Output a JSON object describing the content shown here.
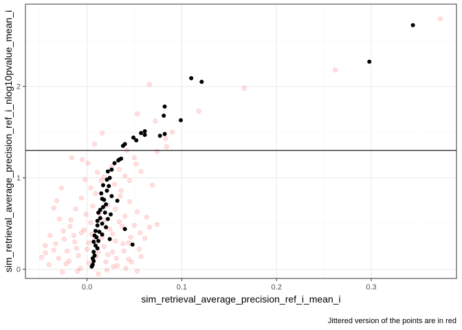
{
  "chart_data": {
    "type": "scatter",
    "title": "",
    "xlabel": "sim_retrieval_average_precision_ref_i_mean_i",
    "ylabel": "sim_retrieval_average_precision_ref_i_nlog10pvalue_mean_i",
    "caption": "Jittered version of the points are in red",
    "xlim": [
      -0.065,
      0.39
    ],
    "ylim": [
      -0.1,
      2.9
    ],
    "x_ticks": [
      0.0,
      0.1,
      0.2,
      0.3
    ],
    "x_tick_labels": [
      "0.0",
      "0.1",
      "0.2",
      "0.3"
    ],
    "y_ticks": [
      0,
      1,
      2
    ],
    "y_tick_labels": [
      "0",
      "1",
      "2"
    ],
    "grid": true,
    "hline": 1.3,
    "colors": {
      "points": "#000000",
      "jittered": "#ff0000",
      "hline": "#000000",
      "panel_border": "#333333",
      "grid_major": "#ebebeb",
      "grid_minor": "#f5f5f5"
    },
    "series": [
      {
        "name": "points",
        "points": [
          [
            0.344,
            2.67
          ],
          [
            0.298,
            2.27
          ],
          [
            0.11,
            2.09
          ],
          [
            0.121,
            2.05
          ],
          [
            0.099,
            1.63
          ],
          [
            0.082,
            1.78
          ],
          [
            0.082,
            1.48
          ],
          [
            0.081,
            1.68
          ],
          [
            0.077,
            1.46
          ],
          [
            0.061,
            1.51
          ],
          [
            0.061,
            1.47
          ],
          [
            0.057,
            1.49
          ],
          [
            0.052,
            1.41
          ],
          [
            0.049,
            1.44
          ],
          [
            0.04,
            1.37
          ],
          [
            0.038,
            1.35
          ],
          [
            0.036,
            1.21
          ],
          [
            0.034,
            1.2
          ],
          [
            0.033,
            1.19
          ],
          [
            0.029,
            1.16
          ],
          [
            0.026,
            1.09
          ],
          [
            0.024,
            1.0
          ],
          [
            0.022,
            1.07
          ],
          [
            0.021,
            0.98
          ],
          [
            0.023,
            0.91
          ],
          [
            0.021,
            0.86
          ],
          [
            0.017,
            0.92
          ],
          [
            0.015,
            0.83
          ],
          [
            0.016,
            0.77
          ],
          [
            0.018,
            0.76
          ],
          [
            0.026,
            0.8
          ],
          [
            0.032,
            0.75
          ],
          [
            0.017,
            0.68
          ],
          [
            0.014,
            0.65
          ],
          [
            0.012,
            0.62
          ],
          [
            0.019,
            0.62
          ],
          [
            0.025,
            0.6
          ],
          [
            0.022,
            0.55
          ],
          [
            0.014,
            0.56
          ],
          [
            0.011,
            0.53
          ],
          [
            0.011,
            0.48
          ],
          [
            0.016,
            0.5
          ],
          [
            0.02,
            0.46
          ],
          [
            0.009,
            0.42
          ],
          [
            0.013,
            0.41
          ],
          [
            0.016,
            0.38
          ],
          [
            0.008,
            0.37
          ],
          [
            0.01,
            0.35
          ],
          [
            0.012,
            0.31
          ],
          [
            0.007,
            0.3
          ],
          [
            0.009,
            0.26
          ],
          [
            0.011,
            0.23
          ],
          [
            0.007,
            0.19
          ],
          [
            0.008,
            0.15
          ],
          [
            0.006,
            0.12
          ],
          [
            0.007,
            0.09
          ],
          [
            0.006,
            0.05
          ],
          [
            0.005,
            0.03
          ],
          [
            0.04,
            0.44
          ],
          [
            0.048,
            0.27
          ],
          [
            0.024,
            0.33
          ],
          [
            0.02,
            0.71
          ]
        ]
      },
      {
        "name": "jittered",
        "points": [
          [
            0.373,
            2.74
          ],
          [
            0.262,
            2.18
          ],
          [
            0.166,
            1.98
          ],
          [
            0.066,
            2.02
          ],
          [
            0.118,
            1.73
          ],
          [
            0.053,
            1.7
          ],
          [
            0.072,
            1.62
          ],
          [
            0.09,
            1.5
          ],
          [
            0.083,
            1.43
          ],
          [
            0.016,
            1.49
          ],
          [
            0.084,
            1.34
          ],
          [
            0.008,
            1.37
          ],
          [
            0.074,
            1.29
          ],
          [
            0.042,
            1.3
          ],
          [
            0.052,
            1.15
          ],
          [
            -0.016,
            1.22
          ],
          [
            0.069,
            0.92
          ],
          [
            0.045,
            0.97
          ],
          [
            0.074,
            0.49
          ],
          [
            -0.005,
            1.2
          ],
          [
            0.001,
            1.16
          ],
          [
            0.034,
            1.09
          ],
          [
            0.04,
            1.02
          ],
          [
            0.011,
            1.06
          ],
          [
            -0.027,
            0.89
          ],
          [
            -0.032,
            0.75
          ],
          [
            -0.035,
            0.67
          ],
          [
            -0.029,
            0.55
          ],
          [
            -0.025,
            0.42
          ],
          [
            -0.039,
            0.37
          ],
          [
            -0.044,
            0.26
          ],
          [
            -0.048,
            0.13
          ],
          [
            -0.04,
            0.05
          ],
          [
            -0.026,
            -0.03
          ],
          [
            -0.01,
            -0.02
          ],
          [
            0.012,
            -0.05
          ],
          [
            0.021,
            -0.01
          ],
          [
            0.032,
            0.04
          ],
          [
            0.044,
            0.11
          ],
          [
            0.055,
            0.22
          ],
          [
            0.061,
            0.34
          ],
          [
            0.066,
            0.46
          ],
          [
            0.053,
            0.63
          ],
          [
            0.045,
            0.74
          ],
          [
            0.036,
            0.86
          ],
          [
            0.029,
            0.93
          ],
          [
            0.015,
            0.97
          ],
          [
            0.004,
            0.89
          ],
          [
            -0.006,
            0.78
          ],
          [
            -0.012,
            0.66
          ],
          [
            -0.017,
            0.54
          ],
          [
            -0.003,
            0.43
          ],
          [
            0.008,
            0.32
          ],
          [
            0.018,
            0.25
          ],
          [
            0.027,
            0.19
          ],
          [
            0.038,
            0.28
          ],
          [
            0.046,
            0.35
          ],
          [
            0.05,
            0.48
          ],
          [
            0.04,
            0.58
          ],
          [
            0.03,
            0.66
          ],
          [
            0.022,
            0.7
          ],
          [
            0.013,
            0.61
          ],
          [
            0.004,
            0.51
          ],
          [
            -0.006,
            0.4
          ],
          [
            -0.013,
            0.3
          ],
          [
            -0.021,
            0.2
          ],
          [
            -0.03,
            0.12
          ],
          [
            -0.019,
            0.09
          ],
          [
            -0.009,
            0.15
          ],
          [
            0.0,
            0.22
          ],
          [
            0.01,
            0.14
          ],
          [
            0.02,
            0.08
          ],
          [
            0.031,
            0.12
          ],
          [
            0.039,
            0.2
          ],
          [
            0.047,
            0.08
          ],
          [
            0.057,
            0.14
          ],
          [
            0.024,
            0.44
          ],
          [
            0.034,
            0.52
          ],
          [
            0.006,
            0.69
          ],
          [
            -0.001,
            0.6
          ],
          [
            -0.018,
            0.47
          ],
          [
            -0.033,
            0.28
          ],
          [
            -0.044,
            0.18
          ],
          [
            0.016,
            0.35
          ],
          [
            0.027,
            0.39
          ],
          [
            0.037,
            0.47
          ],
          [
            0.002,
            0.29
          ],
          [
            -0.011,
            0.23
          ],
          [
            0.044,
            0.29
          ],
          [
            0.056,
            0.4
          ],
          [
            0.063,
            0.57
          ],
          [
            0.026,
            1.12
          ],
          [
            0.018,
            1.01
          ],
          [
            0.009,
            0.83
          ],
          [
            -0.002,
            0.98
          ],
          [
            0.05,
            1.22
          ],
          [
            0.057,
            1.07
          ],
          [
            0.035,
            0.8
          ],
          [
            0.019,
            0.54
          ],
          [
            0.012,
            0.19
          ],
          [
            0.002,
            0.07
          ],
          [
            -0.007,
            0.01
          ],
          [
            -0.022,
            0.06
          ],
          [
            -0.035,
            0.21
          ],
          [
            -0.024,
            0.33
          ],
          [
            -0.014,
            0.37
          ],
          [
            0.005,
            0.38
          ],
          [
            0.028,
            0.03
          ],
          [
            0.041,
            0.01
          ],
          [
            0.053,
            -0.02
          ],
          [
            0.03,
            0.31
          ],
          [
            0.022,
            0.16
          ]
        ]
      }
    ]
  }
}
